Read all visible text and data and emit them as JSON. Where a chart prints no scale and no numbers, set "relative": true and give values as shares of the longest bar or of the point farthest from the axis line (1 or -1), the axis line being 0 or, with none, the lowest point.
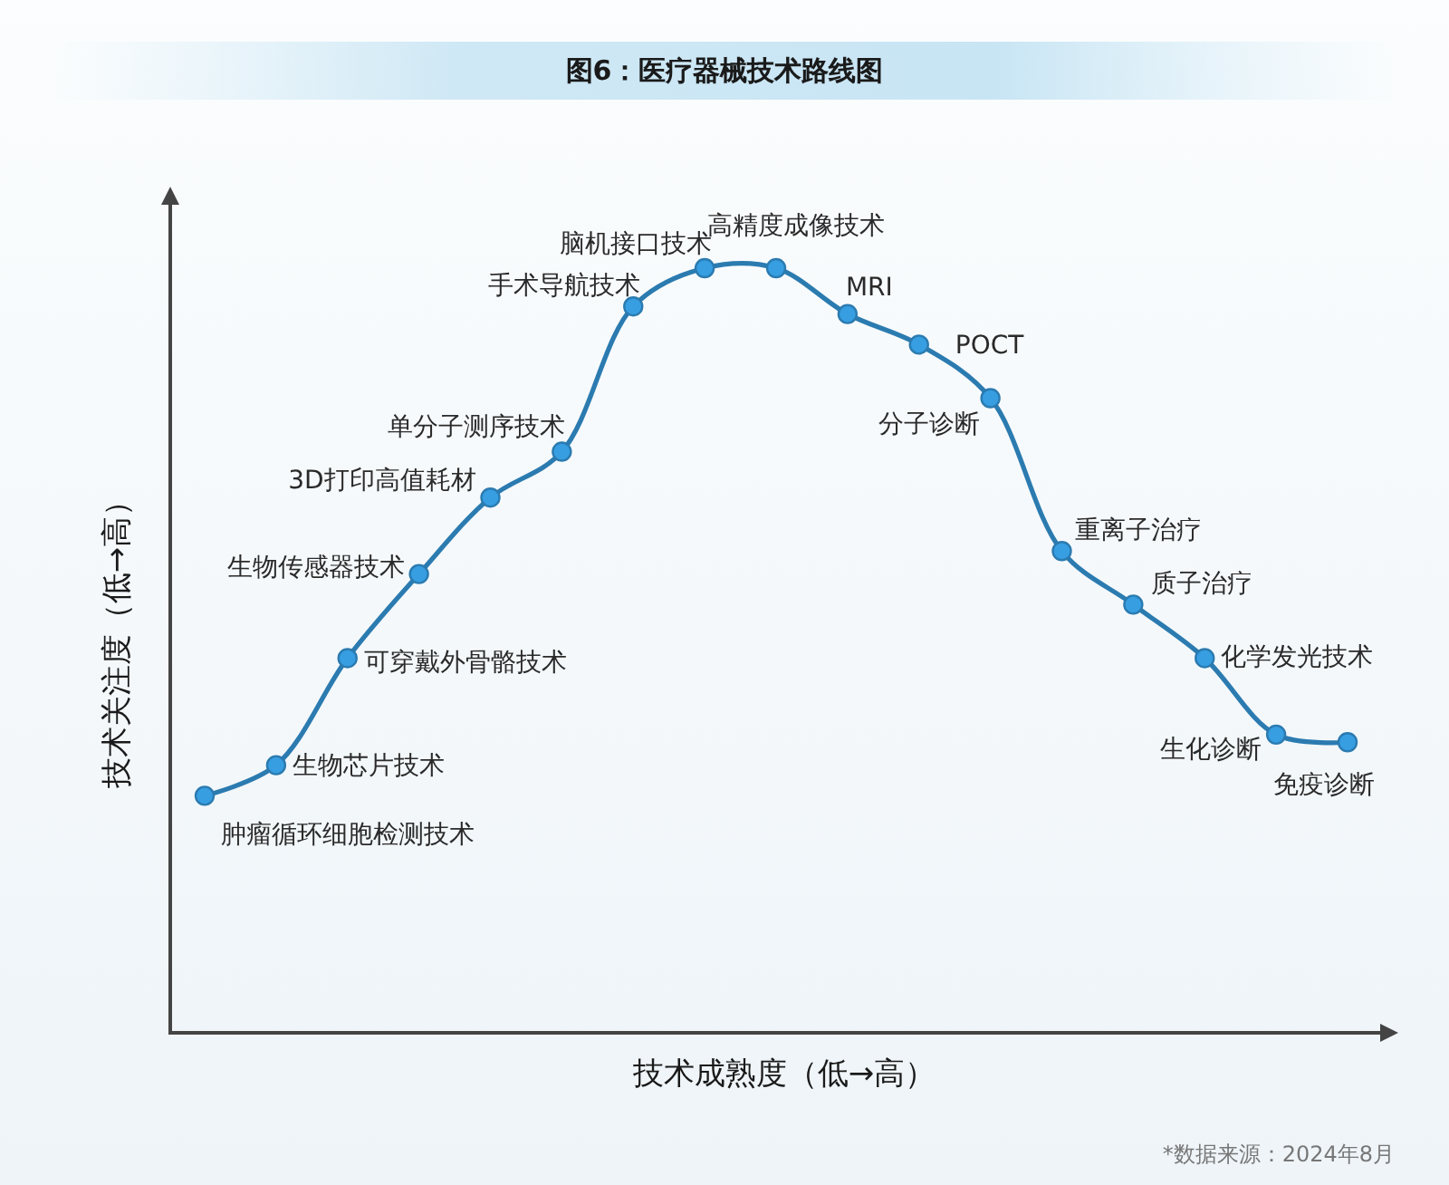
{
  "chart_data": {
    "type": "line",
    "title": "图6：医疗器械技术路线图",
    "xlabel": "技术成熟度（低→高）",
    "ylabel": "技术关注度（低→高）",
    "categories": [
      null,
      null,
      null,
      null,
      null,
      null,
      null,
      null,
      null,
      null,
      null,
      null,
      null,
      null,
      null,
      null,
      null
    ],
    "series": [
      {
        "color": "#2b7bb0",
        "values": [
          0.31,
          0.35,
          0.49,
          0.6,
          0.7,
          0.76,
          0.95,
          1,
          1,
          0.94,
          0.9,
          0.83,
          0.63,
          0.56,
          0.49,
          0.39,
          0.38
        ]
      }
    ],
    "relative": true,
    "marker": "circle",
    "line_style": "solid",
    "annotations": [
      "肿瘤循环细胞检测技术",
      "生物芯片技术",
      "可穿戴外骨骼技术",
      "生物传感器技术",
      "3D打印高值耗材",
      "单分子测序技术",
      "手术导航技术",
      "脑机接口技术",
      "高精度成像技术",
      "MRI",
      "POCT",
      "分子诊断",
      "重离子治疗",
      "质子治疗",
      "化学发光技术",
      "生化诊断",
      "免疫诊断",
      "*数据来源：2024年8月"
    ]
  }
}
